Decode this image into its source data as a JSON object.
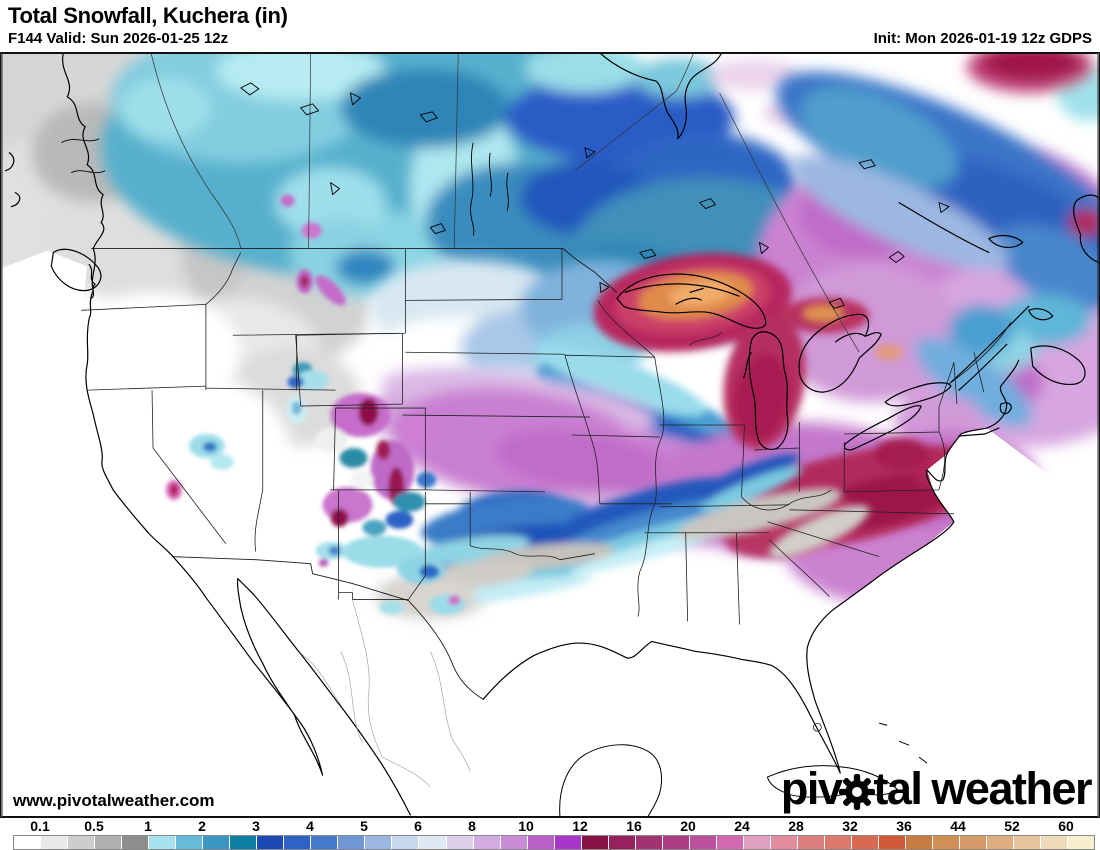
{
  "header": {
    "title": "Total Snowfall, Kuchera (in)",
    "valid": "F144 Valid: Sun 2026-01-25 12z",
    "init": "Init: Mon 2026-01-19 12z GDPS"
  },
  "map": {
    "website": "www.pivotalweather.com",
    "logo": {
      "part1": "piv",
      "part2": "tal",
      "part3": "weather",
      "gear_icon": "gear"
    }
  },
  "colorbar": {
    "unit": "in",
    "labels": [
      "0.1",
      "0.5",
      "1",
      "2",
      "3",
      "4",
      "5",
      "6",
      "8",
      "10",
      "12",
      "16",
      "20",
      "24",
      "28",
      "32",
      "36",
      "44",
      "52",
      "60"
    ],
    "colors": [
      "#ffffff",
      "#e9e9e9",
      "#cdcdcd",
      "#b0b0b0",
      "#8e8e8e",
      "#a5e1ee",
      "#66bcd8",
      "#3c96c4",
      "#0e7fa4",
      "#1c4ab4",
      "#2e63c3",
      "#4579c9",
      "#7097d4",
      "#9cb8e2",
      "#c6d8ed",
      "#dfe9f3",
      "#dccfe9",
      "#d2abe0",
      "#c98cd6",
      "#bb60c9",
      "#a836c9",
      "#871245",
      "#96215c",
      "#a23372",
      "#ad3d85",
      "#bc4f9e",
      "#d267b2",
      "#e19fc2",
      "#e18d9e",
      "#dd7f7e",
      "#dc796c",
      "#d96a52",
      "#d25936",
      "#c97c42",
      "#d28f55",
      "#d49b68",
      "#ddac7f",
      "#e6c59c",
      "#eedab9",
      "#f7eecd"
    ]
  }
}
